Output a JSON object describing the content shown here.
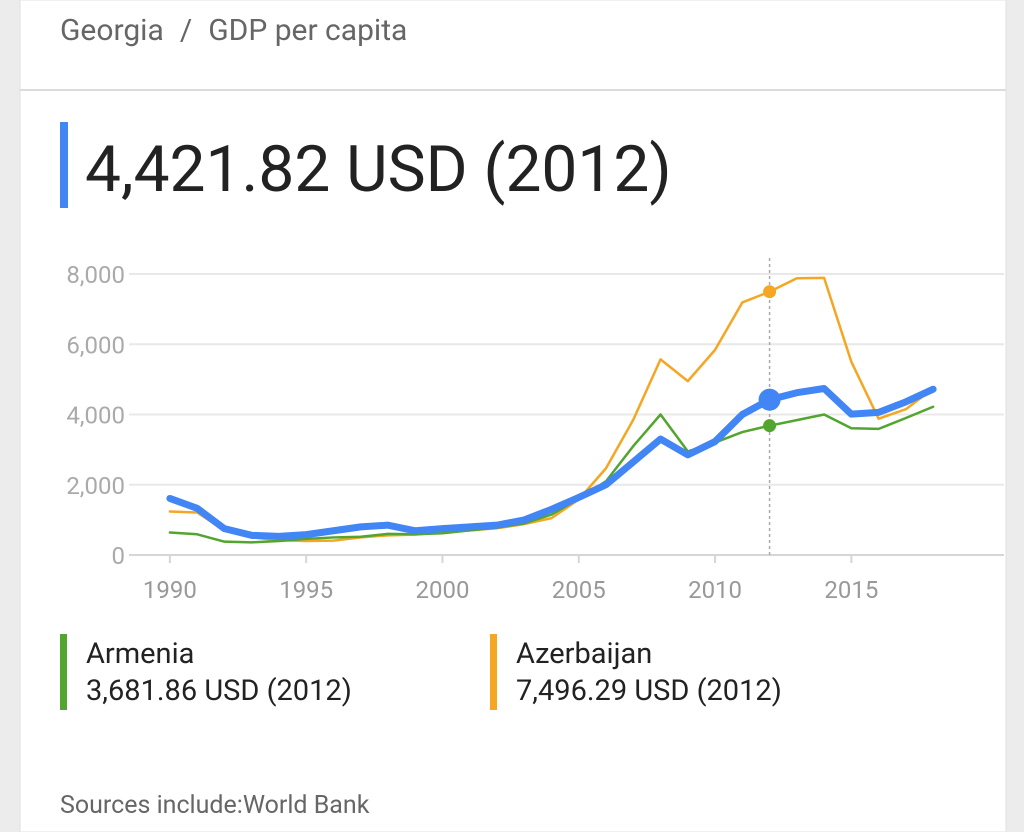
{
  "breadcrumb_separator": "/",
  "headline": "4,421.82 USD (2012)",
  "legend": [
    {
      "series": 1,
      "value_text": "3,681.86 USD (2012)"
    },
    {
      "series": 2,
      "value_text": "7,496.29 USD (2012)"
    }
  ],
  "source": "Sources include:World Bank",
  "chart_data": {
    "type": "line",
    "title": "GDP per capita",
    "x": [
      1990,
      1991,
      1992,
      1993,
      1994,
      1995,
      1996,
      1997,
      1998,
      1999,
      2000,
      2001,
      2002,
      2003,
      2004,
      2005,
      2006,
      2007,
      2008,
      2009,
      2010,
      2011,
      2012,
      2013,
      2014,
      2015,
      2016,
      2017,
      2018
    ],
    "series": [
      {
        "name": "Georgia",
        "color": "#4285f4",
        "values": [
          1610,
          1330,
          750,
          560,
          530,
          580,
          690,
          800,
          850,
          690,
          750,
          800,
          850,
          1000,
          1300,
          1640,
          2000,
          2650,
          3300,
          2850,
          3230,
          4000,
          4422,
          4620,
          4740,
          4010,
          4060,
          4360,
          4720
        ]
      },
      {
        "name": "Armenia",
        "color": "#52a52e",
        "values": [
          640,
          590,
          380,
          360,
          400,
          460,
          500,
          520,
          600,
          590,
          620,
          700,
          780,
          900,
          1150,
          1600,
          2100,
          3100,
          4000,
          2950,
          3200,
          3500,
          3682,
          3840,
          4000,
          3610,
          3590,
          3900,
          4220
        ]
      },
      {
        "name": "Azerbaijan",
        "color": "#f5a623",
        "values": [
          1240,
          1210,
          700,
          500,
          420,
          400,
          410,
          500,
          560,
          580,
          650,
          700,
          760,
          880,
          1050,
          1580,
          2470,
          3850,
          5570,
          4950,
          5840,
          7190,
          7496,
          7880,
          7890,
          5500,
          3880,
          4150,
          4740
        ]
      }
    ],
    "highlight_x": 2012,
    "xlim": [
      1988.5,
      2020.6
    ],
    "ylim": [
      0,
      8000
    ],
    "xticks": [
      1990,
      1995,
      2000,
      2005,
      2010,
      2015
    ],
    "yticks": [
      0,
      {
        "value": 2000,
        "label": "2,000"
      },
      {
        "value": 4000,
        "label": "4,000"
      },
      {
        "value": 6000,
        "label": "6,000"
      },
      {
        "value": 8000,
        "label": "8,000"
      }
    ],
    "grid": true
  }
}
